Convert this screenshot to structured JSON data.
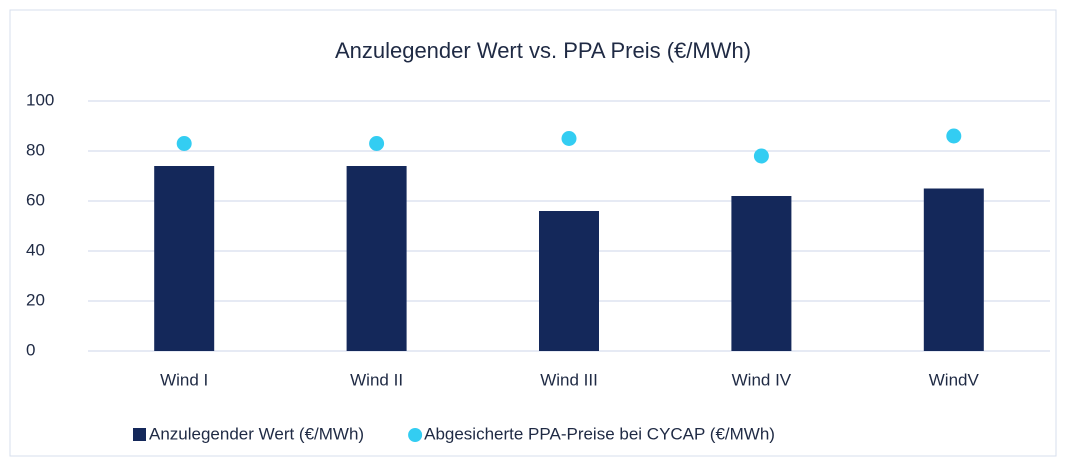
{
  "chart_data": {
    "type": "bar",
    "title": "Anzulegender Wert vs. PPA Preis (€/MWh)",
    "categories": [
      "Wind I",
      "Wind II",
      "Wind III",
      "Wind IV",
      "WindV"
    ],
    "series": [
      {
        "name": "Anzulegender Wert (€/MWh)",
        "type": "bar",
        "color": "#14285a",
        "values": [
          74,
          74,
          56,
          62,
          65
        ]
      },
      {
        "name": "Abgesicherte PPA-Preise bei CYCAP (€/MWh)",
        "type": "scatter",
        "color": "#33cdf2",
        "values": [
          83,
          83,
          85,
          78,
          86
        ]
      }
    ],
    "ylim": [
      0,
      100
    ],
    "yticks": [
      0,
      20,
      40,
      60,
      80,
      100
    ],
    "grid": true,
    "legend": "bottom"
  }
}
